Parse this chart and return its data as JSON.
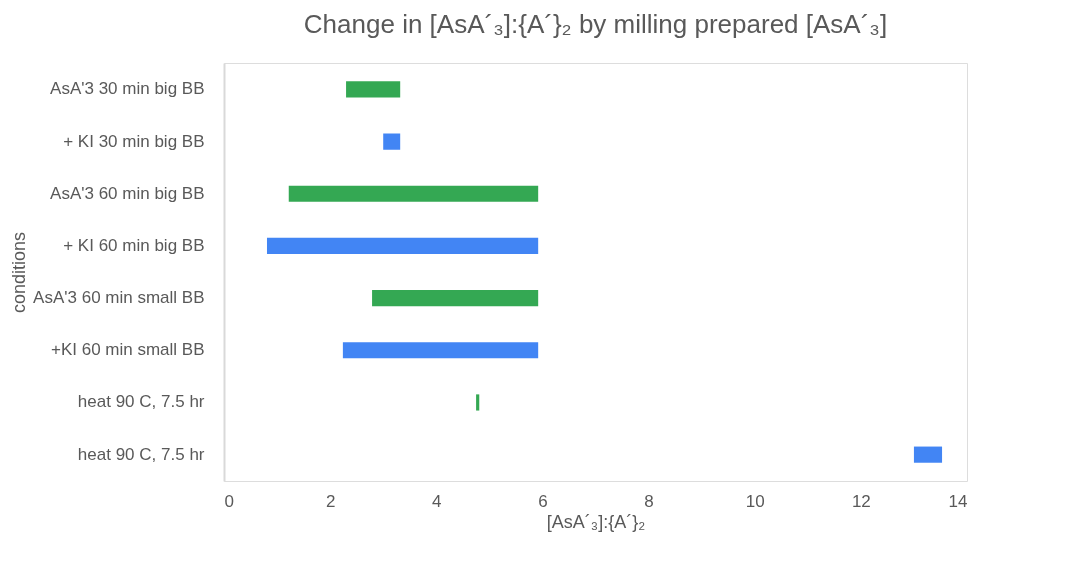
{
  "chart_data": {
    "type": "bar",
    "orientation": "horizontal",
    "title": "Change in [AsA´₃]:{A´}₂ by milling prepared [AsA´₃]",
    "xlabel": "[AsA´₃]:{A´}₂",
    "ylabel": "conditions",
    "categories": [
      "AsA'3 30 min big BB",
      "+ KI 30 min big BB",
      "AsA'3 60 min big BB",
      "+ KI 60 min big BB",
      "AsA'3 60 min small BB",
      "+KI 60 min small BB",
      "heat 90 C, 7.5 hr",
      "heat 90 C, 7.5 hr"
    ],
    "base": [
      3.32,
      3.32,
      5.92,
      5.92,
      5.92,
      5.92,
      4.81,
      13.53
    ],
    "values": [
      -1.02,
      -0.32,
      -4.7,
      -5.11,
      -3.13,
      -3.68,
      -0.06,
      -0.53
    ],
    "colors": [
      "#34a853",
      "#4285f4",
      "#34a853",
      "#4285f4",
      "#34a853",
      "#4285f4",
      "#34a853",
      "#4285f4"
    ],
    "xlim": [
      0,
      14
    ],
    "xticks": [
      0,
      2,
      4,
      6,
      8,
      10,
      12,
      14
    ],
    "grid": false
  }
}
